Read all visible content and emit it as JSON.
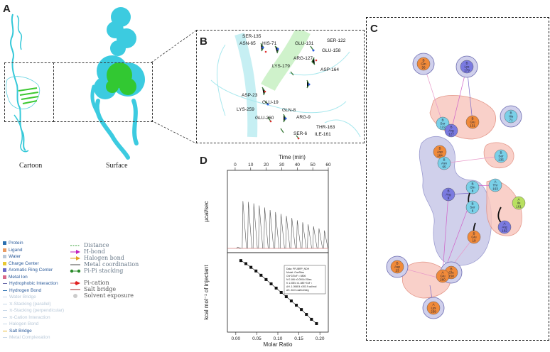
{
  "panels": {
    "a": "A",
    "b": "B",
    "c": "C",
    "d": "D"
  },
  "panel_a": {
    "cartoon_caption": "Cartoon",
    "surface_caption": "Surface"
  },
  "panel_b_residues": [
    "SER-135",
    "ASN-65",
    "HIS-71",
    "GLU-131",
    "SER-122",
    "GLU-158",
    "ARG-127",
    "LYS-179",
    "ASP-164",
    "ASP-23",
    "GLU-19",
    "LYS-259",
    "GLN-8",
    "GLU-260",
    "ARG-9",
    "THR-163",
    "SER-6",
    "ILE-161"
  ],
  "legend_left": [
    {
      "text": "Protein",
      "color": "#2a6fb0"
    },
    {
      "text": "Ligand",
      "color": "#e89a62"
    },
    {
      "text": "Water",
      "color": "#b9c8d8"
    },
    {
      "text": "Charge Center",
      "color": "#e8c832"
    },
    {
      "text": "Aromatic Ring Center",
      "color": "#6a6ac8"
    },
    {
      "text": "Metal Ion",
      "color": "#d86a8a"
    },
    {
      "text": "Hydrophobic Interaction",
      "color": "#6a6aa8"
    },
    {
      "text": "Hydrogen Bond",
      "color": "#2a6fb0"
    },
    {
      "text": "Water Bridge",
      "color": "#c8d8e8"
    },
    {
      "text": "π-Stacking (parallel)",
      "color": "#c8d8e8"
    },
    {
      "text": "π-Stacking (perpendicular)",
      "color": "#c8d8e8"
    },
    {
      "text": "π-Cation Interaction",
      "color": "#c8d8e8"
    },
    {
      "text": "Halogen Bond",
      "color": "#c8d8e8"
    },
    {
      "text": "Salt Bridge",
      "color": "#e8b832"
    },
    {
      "text": "Metal Complexation",
      "color": "#c8d8e8"
    }
  ],
  "legend_mid": [
    "Distance",
    "H-bond",
    "Halogen bond",
    "Metal coordination",
    "Pi-Pi stacking",
    "Pi-cation",
    "Salt bridge",
    "Solvent exposure"
  ],
  "chart_data": {
    "type": "line",
    "title": "",
    "top": {
      "xlabel": "Time (min)",
      "ylabel": "µcal/sec",
      "xlim": [
        -5,
        60
      ],
      "xticks": [
        0,
        10,
        20,
        30,
        40,
        50,
        60
      ],
      "injections_time": [
        1.5,
        5,
        8.5,
        12,
        15.5,
        19,
        22.5,
        26,
        29.5,
        33,
        36.5,
        40,
        43.5,
        47,
        50.5,
        54,
        57.5
      ],
      "peak_values": [
        0.05,
        1.85,
        1.82,
        1.76,
        1.68,
        1.6,
        1.5,
        1.42,
        1.35,
        1.27,
        1.19,
        1.1,
        1.02,
        0.94,
        0.86,
        0.78,
        0.7
      ]
    },
    "bottom": {
      "xlabel": "Molar Ratio",
      "ylabel": "kcal mol⁻¹ of injectant",
      "xlim": [
        -0.02,
        0.22
      ],
      "xticks": [
        "0.00",
        "0.05",
        "0.10",
        "0.15",
        "0.20"
      ],
      "x": [
        0.012,
        0.024,
        0.036,
        0.048,
        0.06,
        0.072,
        0.084,
        0.096,
        0.108,
        0.12,
        0.132,
        0.144,
        0.156,
        0.168,
        0.18,
        0.192
      ],
      "y": [
        9.1,
        8.85,
        8.55,
        8.25,
        7.9,
        7.55,
        7.2,
        6.85,
        6.5,
        6.15,
        5.8,
        5.45,
        5.1,
        4.7,
        4.3,
        3.95
      ]
    },
    "fit_box": [
      "Data: PFUBRP_NDH",
      "Model: OneSites",
      "Chi^2/DoF = 6806",
      "N     0.166   ±0.00044 Sites",
      "K     1.00E4  ±1.08E+3 M⁻¹",
      "ΔH    -1.054E4  ±303.9 cal/mol",
      "ΔS    -53.0 cal/mol/deg"
    ]
  },
  "panel_c_nodes": [
    {
      "chain": "B",
      "res": "Gln",
      "num": "56"
    },
    {
      "chain": "B",
      "res": "Lys",
      "num": "179"
    },
    {
      "chain": "B",
      "res": "His",
      "num": "71"
    },
    {
      "chain": "B",
      "res": "Ser",
      "num": "122"
    },
    {
      "chain": "B",
      "res": "Arg",
      "num": "127"
    },
    {
      "chain": "B",
      "res": "Glu",
      "num": "131"
    },
    {
      "chain": "B",
      "res": "Asp",
      "num": "164"
    },
    {
      "chain": "B",
      "res": "Asn",
      "num": "65"
    },
    {
      "chain": "B",
      "res": "Ser",
      "num": "135"
    },
    {
      "chain": "B",
      "res": "Gln",
      "num": "8"
    },
    {
      "chain": "B",
      "res": "Arg",
      "num": "9"
    },
    {
      "chain": "A",
      "res": "Thr",
      "num": "163"
    },
    {
      "chain": "A",
      "res": "Ile",
      "num": "161"
    },
    {
      "chain": "B",
      "res": "Ser",
      "num": "6"
    },
    {
      "chain": "A",
      "res": "Arg",
      "num": "162"
    },
    {
      "chain": "B",
      "res": "Glu",
      "num": "19"
    },
    {
      "chain": "B",
      "res": "Glu",
      "num": "158"
    },
    {
      "chain": "A",
      "res": "Glu",
      "num": "260"
    },
    {
      "chain": "A",
      "res": "Lys",
      "num": "259"
    },
    {
      "chain": "B",
      "res": "Asp",
      "num": "23"
    }
  ]
}
